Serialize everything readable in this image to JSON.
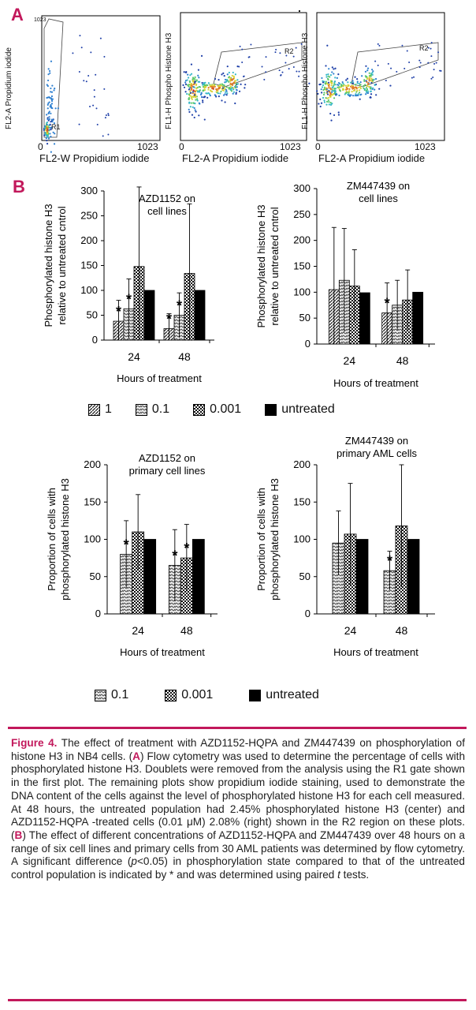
{
  "panels": {
    "a": "A",
    "b": "B"
  },
  "flow": [
    {
      "ylabel": "FL2-A  Propidium iodide",
      "xlabel": "FL2-W Propidium iodide",
      "xmin": "0",
      "xmax": "1023",
      "ymax": "1023",
      "gate": "R1"
    },
    {
      "ylabel": "FL1-H Phospho Histone H3",
      "xlabel": "FL2-A Propidium iodide",
      "xmin": "0",
      "xmax": "1023",
      "gate": "R2"
    },
    {
      "ylabel": "FL1-H Phospho Histone H3",
      "xlabel": "FL2-A Propidium iodide",
      "xmin": "0",
      "xmax": "1023",
      "gate": "R2"
    }
  ],
  "chart_data": [
    {
      "type": "bar",
      "title": [
        "AZD1152 on",
        "cell lines"
      ],
      "ylabel": [
        "Phosphorylated histone H3",
        "relative to untreated cntrol"
      ],
      "xlabel": "Hours of treatment",
      "categories": [
        "24",
        "48"
      ],
      "ylim": [
        0,
        300
      ],
      "yticks": [
        "0",
        "50",
        "100",
        "150",
        "200",
        "250",
        "300"
      ],
      "series": [
        {
          "name": "1",
          "values": [
            38,
            23
          ],
          "err": [
            42,
            30
          ],
          "sig": [
            true,
            true
          ]
        },
        {
          "name": "0.1",
          "values": [
            63,
            50
          ],
          "err": [
            60,
            45
          ],
          "sig": [
            true,
            true
          ]
        },
        {
          "name": "0.001",
          "values": [
            148,
            134
          ],
          "err": [
            160,
            140
          ],
          "sig": [
            false,
            false
          ]
        },
        {
          "name": "untreated",
          "values": [
            100,
            100
          ],
          "err": [
            0,
            0
          ],
          "sig": [
            false,
            false
          ]
        }
      ]
    },
    {
      "type": "bar",
      "title": [
        "ZM447439 on",
        "cell lines"
      ],
      "ylabel": [
        "Phosphorylated histone H3",
        "relative to untreated cntrol"
      ],
      "xlabel": "Hours of treatment",
      "categories": [
        "24",
        "48"
      ],
      "ylim": [
        0,
        300
      ],
      "yticks": [
        "0",
        "50",
        "100",
        "150",
        "200",
        "250",
        "300"
      ],
      "series": [
        {
          "name": "1",
          "values": [
            105,
            60
          ],
          "err": [
            120,
            58
          ],
          "sig": [
            false,
            true
          ]
        },
        {
          "name": "0.1",
          "values": [
            123,
            75
          ],
          "err": [
            100,
            48
          ],
          "sig": [
            false,
            false
          ]
        },
        {
          "name": "0.001",
          "values": [
            112,
            85
          ],
          "err": [
            70,
            58
          ],
          "sig": [
            false,
            false
          ]
        },
        {
          "name": "untreated",
          "values": [
            99,
            100
          ],
          "err": [
            0,
            0
          ],
          "sig": [
            false,
            false
          ]
        }
      ]
    },
    {
      "type": "bar",
      "title": [
        "AZD1152 on",
        "primary cell lines"
      ],
      "ylabel": [
        "Proportion of cells with",
        "phosphorylated histone H3"
      ],
      "xlabel": "Hours of treatment",
      "categories": [
        "24",
        "48"
      ],
      "ylim": [
        0,
        200
      ],
      "yticks": [
        "0",
        "50",
        "100",
        "150",
        "200"
      ],
      "series": [
        {
          "name": "0.1",
          "values": [
            80,
            65
          ],
          "err": [
            45,
            48
          ],
          "sig": [
            true,
            true
          ]
        },
        {
          "name": "0.001",
          "values": [
            110,
            75
          ],
          "err": [
            50,
            45
          ],
          "sig": [
            false,
            true
          ]
        },
        {
          "name": "untreated",
          "values": [
            100,
            100
          ],
          "err": [
            0,
            0
          ],
          "sig": [
            false,
            false
          ]
        }
      ]
    },
    {
      "type": "bar",
      "title": [
        "ZM447439 on",
        "primary AML cells"
      ],
      "ylabel": [
        "Proportion of cells with",
        "phosphorylated histone H3"
      ],
      "xlabel": "Hours of treatment",
      "categories": [
        "24",
        "48"
      ],
      "ylim": [
        0,
        200
      ],
      "yticks": [
        "0",
        "50",
        "100",
        "150",
        "200"
      ],
      "series": [
        {
          "name": "0.1",
          "values": [
            95,
            58
          ],
          "err": [
            43,
            26
          ],
          "sig": [
            false,
            true
          ]
        },
        {
          "name": "0.001",
          "values": [
            107,
            118
          ],
          "err": [
            68,
            82
          ],
          "sig": [
            false,
            false
          ]
        },
        {
          "name": "untreated",
          "values": [
            100,
            100
          ],
          "err": [
            0,
            0
          ],
          "sig": [
            false,
            false
          ]
        }
      ]
    }
  ],
  "legend1": [
    "1",
    "0.1",
    "0.001",
    "untreated"
  ],
  "legend2": [
    "0.1",
    "0.001",
    "untreated"
  ],
  "caption": {
    "fig": "Figure 4.",
    "t1": " The effect of treatment with AZD1152-HQPA and ZM447439 on phosphorylation of histone H3 in NB4 cells. (",
    "a": "A",
    "t2": ") Flow cytometry was used to determine the percentage of cells with phosphorylated histone H3. Doublets were removed from the analysis using the R1 gate shown in the first plot. The remaining plots show propidium iodide staining, used to demonstrate the DNA content of the cells against the level of phosphorylated histone H3 for each cell measured. At 48 hours, the untreated population had 2.45% phosphorylated histone H3 (center) and AZD1152-HQPA -treated cells (0.01 μM) 2.08% (right) shown in the R2 region on these plots. (",
    "b": "B",
    "t3": ") The effect of different concentrations of AZD1152-HQPA and ZM447439 over 48 hours on a range of six cell lines and primary cells from 30 AML patients was determined by flow cytometry. A significant difference (",
    "p": "p",
    "t4": "<0.05) in phosphorylation state compared to that of the untreated control population is indicated by * and was determined using paired ",
    "t": "t",
    "t5": " tests."
  },
  "colors": {
    "accent": "#c2185b"
  }
}
